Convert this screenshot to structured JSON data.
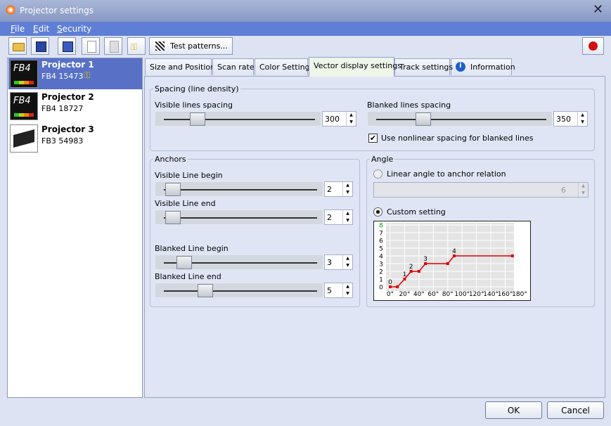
{
  "window": {
    "title": "Projector settings"
  },
  "menu": [
    "File",
    "Edit",
    "Security"
  ],
  "toolbar": {
    "test_patterns": "Test patterns..."
  },
  "projectors": [
    {
      "name": "Projector 1",
      "serial": "FB4 15473",
      "badge": "FB4"
    },
    {
      "name": "Projector 2",
      "serial": "FB4 18727",
      "badge": "FB4"
    },
    {
      "name": "Projector 3",
      "serial": "FB3 54983"
    }
  ],
  "tabs": [
    "Size and Position",
    "Scan rate",
    "Color Settings",
    "Vector display settings",
    "Track settings",
    "Information"
  ],
  "spacing": {
    "title": "Spacing (line density)",
    "visible_label": "Visible lines spacing",
    "visible_value": 300,
    "blanked_label": "Blanked lines spacing",
    "blanked_value": 350,
    "nonlinear_label": "Use nonlinear spacing for blanked lines"
  },
  "anchors": {
    "title": "Anchors",
    "visible_begin_label": "Visible Line begin",
    "visible_begin_value": 2,
    "visible_end_label": "Visible Line end",
    "visible_end_value": 2,
    "blanked_begin_label": "Blanked Line begin",
    "blanked_begin_value": 3,
    "blanked_end_label": "Blanked Line end",
    "blanked_end_value": 5
  },
  "angle": {
    "title": "Angle",
    "linear_label": "Linear angle to anchor relation",
    "linear_value": 6,
    "custom_label": "Custom setting"
  },
  "buttons": {
    "ok": "OK",
    "cancel": "Cancel"
  },
  "chart_data": {
    "type": "line",
    "x": [
      0,
      10,
      20,
      29,
      40,
      49,
      80,
      89,
      170
    ],
    "values": [
      0,
      0,
      1,
      2,
      2,
      3,
      3,
      4,
      4
    ],
    "value_labels": [
      "0",
      null,
      "1",
      "2",
      null,
      "3",
      null,
      "4",
      null
    ],
    "color": "#dd0000",
    "grid": true,
    "last_ytick_color": "#009900",
    "xlim": [
      0,
      180
    ],
    "ylim": [
      0,
      8
    ],
    "xticks": [
      {
        "value": 0,
        "label": "0°"
      },
      {
        "value": 20,
        "label": "20°"
      },
      {
        "value": 40,
        "label": "40°"
      },
      {
        "value": 60,
        "label": "60°"
      },
      {
        "value": 80,
        "label": "80°"
      },
      {
        "value": 100,
        "label": "100°"
      },
      {
        "value": 120,
        "label": "120°"
      },
      {
        "value": 140,
        "label": "140°"
      },
      {
        "value": 160,
        "label": "160°"
      },
      {
        "value": 180,
        "label": "180°"
      }
    ],
    "yticks": [
      0,
      1,
      2,
      3,
      4,
      5,
      6,
      7,
      8
    ]
  }
}
